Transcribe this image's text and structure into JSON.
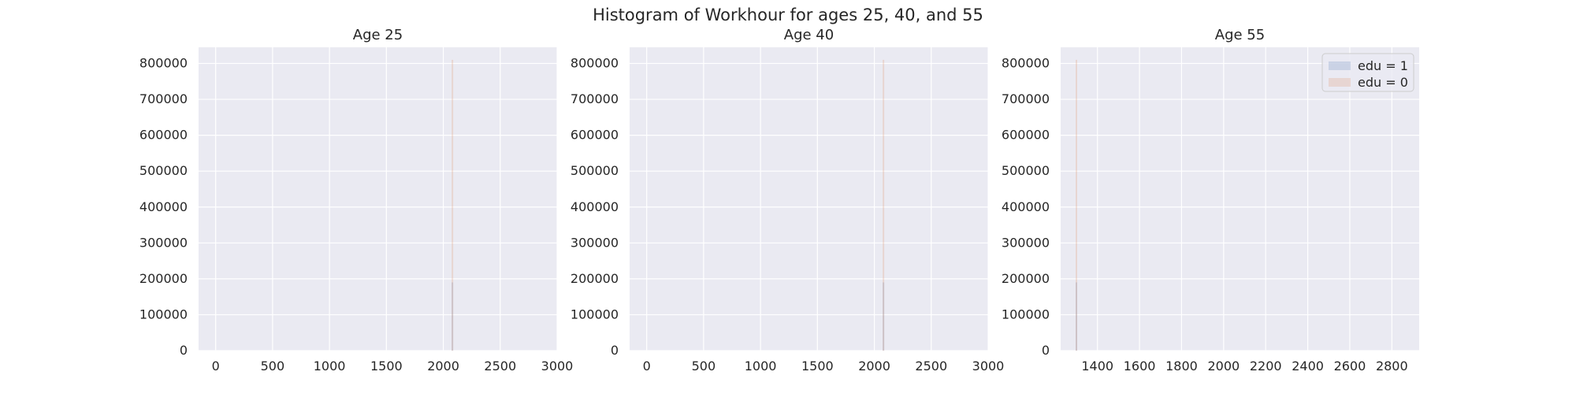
{
  "figure": {
    "title": "Histogram of Workhour for ages 25, 40, and 55",
    "background": "#ffffff"
  },
  "style": {
    "plot_background": "#eaeaf2",
    "grid_color": "#ffffff",
    "series_colors": {
      "edu = 1": "#4c72b0",
      "edu = 0": "#dd8452"
    },
    "bar_alpha": 0.2
  },
  "legend": {
    "location": "top-right",
    "panel": 2,
    "entries": [
      {
        "label": "edu = 1",
        "color": "#4c72b0"
      },
      {
        "label": "edu = 0",
        "color": "#dd8452"
      }
    ]
  },
  "chart_data": [
    {
      "type": "bar",
      "title": "Age 25",
      "xlabel": "",
      "ylabel": "",
      "xlim": [
        -150,
        3000
      ],
      "ylim": [
        0,
        845000
      ],
      "xticks": [
        0,
        500,
        1000,
        1500,
        2000,
        2500,
        3000
      ],
      "yticks": [
        0,
        100000,
        200000,
        300000,
        400000,
        500000,
        600000,
        700000,
        800000
      ],
      "grid": true,
      "series": [
        {
          "name": "edu = 1",
          "bins": [
            {
              "x": 2080,
              "value": 190000
            }
          ]
        },
        {
          "name": "edu = 0",
          "bins": [
            {
              "x": 2080,
              "value": 810000
            }
          ]
        }
      ]
    },
    {
      "type": "bar",
      "title": "Age 40",
      "xlabel": "",
      "ylabel": "",
      "xlim": [
        -150,
        3000
      ],
      "ylim": [
        0,
        845000
      ],
      "xticks": [
        0,
        500,
        1000,
        1500,
        2000,
        2500,
        3000
      ],
      "yticks": [
        0,
        100000,
        200000,
        300000,
        400000,
        500000,
        600000,
        700000,
        800000
      ],
      "grid": true,
      "series": [
        {
          "name": "edu = 1",
          "bins": [
            {
              "x": 2080,
              "value": 190000
            }
          ]
        },
        {
          "name": "edu = 0",
          "bins": [
            {
              "x": 2080,
              "value": 810000
            }
          ]
        }
      ]
    },
    {
      "type": "bar",
      "title": "Age 55",
      "xlabel": "",
      "ylabel": "",
      "xlim": [
        1225,
        2930
      ],
      "ylim": [
        0,
        845000
      ],
      "xticks": [
        1400,
        1600,
        1800,
        2000,
        2200,
        2400,
        2600,
        2800
      ],
      "yticks": [
        0,
        100000,
        200000,
        300000,
        400000,
        500000,
        600000,
        700000,
        800000
      ],
      "grid": true,
      "series": [
        {
          "name": "edu = 1",
          "bins": [
            {
              "x": 1300,
              "value": 190000
            }
          ]
        },
        {
          "name": "edu = 0",
          "bins": [
            {
              "x": 1300,
              "value": 810000
            }
          ]
        }
      ]
    }
  ]
}
